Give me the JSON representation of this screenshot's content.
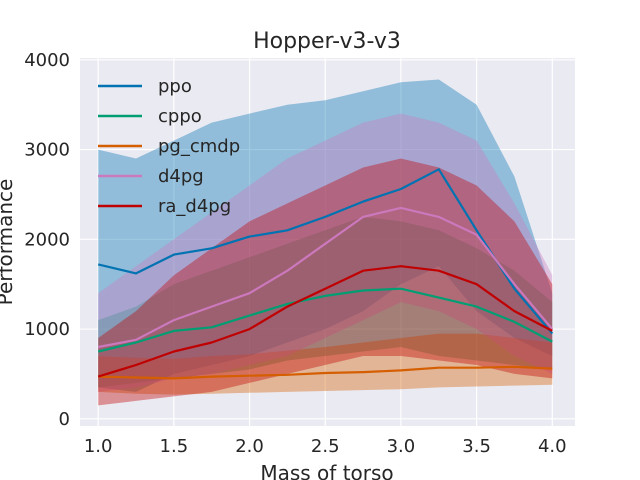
{
  "chart_data": {
    "type": "line",
    "title": "Hopper-v3-v3",
    "xlabel": "Mass of torso",
    "ylabel": "Performance",
    "xlim": [
      0.88,
      4.15
    ],
    "ylim": [
      -80,
      4020
    ],
    "x_ticks": [
      "1.0",
      "1.5",
      "2.0",
      "2.5",
      "3.0",
      "3.5",
      "4.0"
    ],
    "y_ticks": [
      "0",
      "1000",
      "2000",
      "3000",
      "4000"
    ],
    "grid": true,
    "legend_position": "top-left",
    "x": [
      1.0,
      1.25,
      1.5,
      1.75,
      2.0,
      2.25,
      2.5,
      2.75,
      3.0,
      3.25,
      3.5,
      3.75,
      4.0
    ],
    "series": [
      {
        "name": "ppo",
        "color": "#0173b2",
        "values": [
          1720,
          1620,
          1830,
          1900,
          2030,
          2100,
          2250,
          2420,
          2560,
          2780,
          2100,
          1450,
          950
        ],
        "lower": [
          350,
          300,
          500,
          600,
          700,
          850,
          1000,
          1200,
          1500,
          1700,
          1200,
          900,
          700
        ],
        "upper": [
          3000,
          2900,
          3100,
          3300,
          3400,
          3500,
          3550,
          3650,
          3750,
          3780,
          3500,
          2700,
          1400
        ]
      },
      {
        "name": "cppo",
        "color": "#029e73",
        "values": [
          750,
          850,
          980,
          1020,
          1150,
          1280,
          1370,
          1430,
          1450,
          1350,
          1250,
          1080,
          860
        ],
        "lower": [
          350,
          400,
          450,
          500,
          550,
          650,
          700,
          750,
          800,
          700,
          650,
          600,
          550
        ],
        "upper": [
          1100,
          1250,
          1500,
          1650,
          1800,
          1950,
          2100,
          2250,
          2200,
          2100,
          1900,
          1650,
          1300
        ]
      },
      {
        "name": "pg_cmdp",
        "color": "#d55e00",
        "values": [
          470,
          460,
          450,
          470,
          480,
          490,
          510,
          520,
          540,
          570,
          570,
          580,
          560
        ],
        "lower": [
          300,
          280,
          270,
          280,
          290,
          300,
          310,
          320,
          330,
          350,
          360,
          370,
          380
        ],
        "upper": [
          700,
          680,
          670,
          700,
          720,
          760,
          800,
          850,
          900,
          950,
          950,
          900,
          850
        ]
      },
      {
        "name": "d4pg",
        "color": "#cc78bc",
        "values": [
          800,
          880,
          1100,
          1250,
          1400,
          1650,
          1950,
          2250,
          2350,
          2250,
          2050,
          1500,
          1000
        ],
        "lower": [
          300,
          350,
          450,
          500,
          600,
          700,
          900,
          1100,
          1300,
          1200,
          1000,
          700,
          500
        ],
        "upper": [
          1400,
          1700,
          2000,
          2300,
          2600,
          2900,
          3100,
          3300,
          3400,
          3300,
          3100,
          2400,
          1600
        ]
      },
      {
        "name": "ra_d4pg",
        "color": "#c00000",
        "values": [
          470,
          600,
          750,
          850,
          1000,
          1250,
          1450,
          1650,
          1700,
          1650,
          1500,
          1200,
          980
        ],
        "lower": [
          150,
          200,
          250,
          300,
          400,
          500,
          600,
          700,
          700,
          650,
          600,
          500,
          450
        ],
        "upper": [
          900,
          1200,
          1600,
          1900,
          2200,
          2400,
          2600,
          2800,
          2900,
          2800,
          2600,
          2200,
          1500
        ]
      }
    ]
  }
}
